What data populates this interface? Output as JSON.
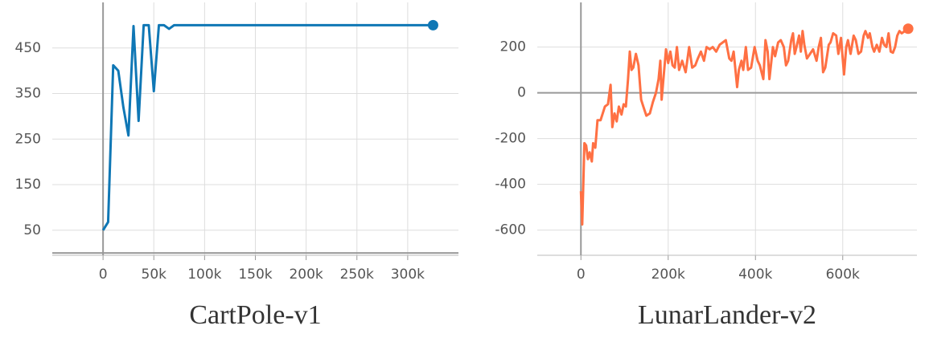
{
  "chart_data": [
    {
      "type": "line",
      "title": "CartPole-v1",
      "color": "#0f77b5",
      "x": [
        0,
        5000,
        10000,
        15000,
        20000,
        25000,
        30000,
        35000,
        40000,
        45000,
        50000,
        55000,
        60000,
        65000,
        70000,
        325000
      ],
      "values": [
        50,
        68,
        412,
        400,
        320,
        258,
        498,
        290,
        500,
        500,
        355,
        500,
        500,
        492,
        500,
        500
      ],
      "xlim": [
        -50000,
        350000
      ],
      "xticks": [
        0,
        {
          "value": 50000,
          "label": "50k"
        },
        {
          "value": 100000,
          "label": "100k"
        },
        {
          "value": 150000,
          "label": "150k"
        },
        {
          "value": 200000,
          "label": "200k"
        },
        {
          "value": 250000,
          "label": "250k"
        },
        {
          "value": 300000,
          "label": "300k"
        }
      ],
      "ylim": [
        -5,
        550
      ],
      "yticks": [
        50,
        150,
        250,
        350,
        450
      ],
      "grid": true
    },
    {
      "type": "line",
      "title": "LunarLander-v2",
      "color": "#ff7043",
      "x": [
        0,
        3000,
        8000,
        12000,
        16000,
        20000,
        25000,
        28000,
        33000,
        38000,
        45000,
        55000,
        62000,
        68000,
        72000,
        77000,
        82000,
        87000,
        93000,
        98000,
        103000,
        108000,
        112000,
        116000,
        120000,
        126000,
        132000,
        138000,
        143000,
        150000,
        158000,
        165000,
        172000,
        178000,
        182000,
        185000,
        190000,
        195000,
        200000,
        205000,
        210000,
        215000,
        220000,
        225000,
        232000,
        240000,
        248000,
        255000,
        262000,
        268000,
        275000,
        282000,
        288000,
        295000,
        302000,
        310000,
        318000,
        325000,
        332000,
        340000,
        345000,
        350000,
        358000,
        362000,
        368000,
        372000,
        378000,
        383000,
        390000,
        398000,
        405000,
        410000,
        418000,
        423000,
        428000,
        432000,
        440000,
        445000,
        452000,
        458000,
        465000,
        470000,
        475000,
        482000,
        486000,
        490000,
        494000,
        500000,
        504000,
        508000,
        512000,
        518000,
        525000,
        532000,
        540000,
        545000,
        550000,
        555000,
        560000,
        568000,
        572000,
        578000,
        585000,
        590000,
        596000,
        603000,
        608000,
        612000,
        618000,
        625000,
        630000,
        636000,
        642000,
        648000,
        652000,
        658000,
        662000,
        668000,
        672000,
        678000,
        684000,
        690000,
        695000,
        700000,
        705000,
        710000,
        715000,
        720000,
        725000,
        730000,
        735000,
        750000
      ],
      "values": [
        -430,
        -575,
        -220,
        -230,
        -290,
        -260,
        -300,
        -220,
        -240,
        -120,
        -120,
        -60,
        -50,
        35,
        -150,
        -90,
        -125,
        -60,
        -95,
        -50,
        -60,
        60,
        180,
        100,
        110,
        170,
        120,
        -30,
        -60,
        -100,
        -90,
        -40,
        0,
        60,
        140,
        -30,
        80,
        190,
        130,
        180,
        120,
        110,
        200,
        100,
        140,
        90,
        200,
        110,
        120,
        150,
        180,
        140,
        200,
        190,
        200,
        180,
        210,
        220,
        230,
        150,
        140,
        180,
        25,
        100,
        140,
        100,
        200,
        100,
        110,
        200,
        140,
        120,
        60,
        230,
        180,
        60,
        200,
        160,
        220,
        230,
        200,
        120,
        140,
        230,
        260,
        170,
        200,
        250,
        180,
        270,
        210,
        150,
        170,
        190,
        140,
        200,
        240,
        90,
        110,
        210,
        220,
        260,
        250,
        170,
        240,
        80,
        200,
        230,
        170,
        250,
        230,
        170,
        180,
        250,
        270,
        240,
        260,
        200,
        180,
        210,
        180,
        240,
        210,
        200,
        260,
        180,
        175,
        200,
        250,
        270,
        260,
        280
      ],
      "xlim": [
        -100000,
        770000
      ],
      "xticks": [
        0,
        {
          "value": 200000,
          "label": "200k"
        },
        {
          "value": 400000,
          "label": "400k"
        },
        {
          "value": 600000,
          "label": "600k"
        }
      ],
      "ylim": [
        -710,
        395
      ],
      "yticks": [
        -600,
        -400,
        -200,
        0,
        200
      ],
      "grid": true
    }
  ]
}
